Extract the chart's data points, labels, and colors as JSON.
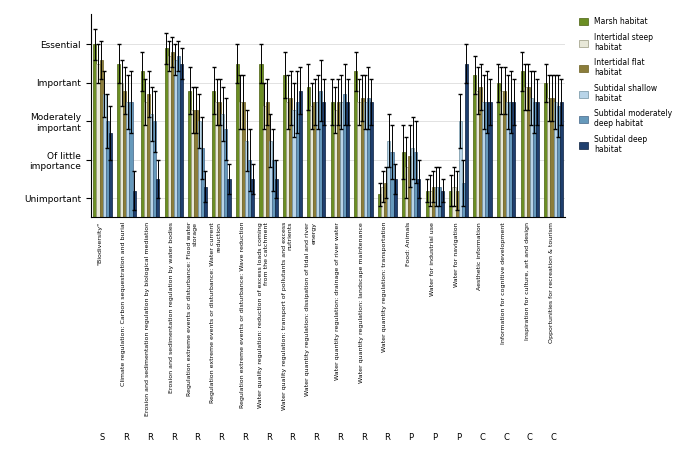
{
  "categories": [
    "\"Biodiversity\"",
    "Climate regulation: Carbon sequestration and burial",
    "Erosion and sedimentation regulation by biological mediation",
    "Erosion and sedimentation regulation by water bodies",
    "Regulation extreme events or disturbance: Flood water\nstorage",
    "Regulation extreme events or disturbance: Water current\nreduction",
    "Regulation extreme events or disturbance: Wave reduction",
    "Water quality regulation: reduction of excess loads coming\nfrom the catchment",
    "Water quality regulation: transport of pollutants and excess\nnutrients",
    "Water quantity regulation: dissipation of tidal and river\nenergy",
    "Water quantity regulation: drainage of river water",
    "Water quantity regulation: landscape maintenance",
    "Water quantity regulation: transportation",
    "Food: Animals",
    "Water for industrial use",
    "Water for navigation",
    "Aesthetic information",
    "Information for cognitive development",
    "Inspiration for culture, art and design",
    "Opportunities for recreation & tourism"
  ],
  "category_codes": [
    "S",
    "R",
    "R",
    "R",
    "R",
    "R",
    "R",
    "R",
    "R",
    "R",
    "R",
    "R",
    "R",
    "P",
    "P",
    "P",
    "C",
    "C",
    "C",
    "C"
  ],
  "habitats": [
    "Marsh habitat",
    "Intertidal steep\nhabitat",
    "Intertidal flat\nhabitat",
    "Subtidal shallow\nhabitat",
    "Subtidal moderately\ndeep habitat",
    "Subtidal deep\nhabitat"
  ],
  "colors": [
    "#6b8e23",
    "#e8e8d8",
    "#8b7d3a",
    "#b8d4e8",
    "#6699bb",
    "#1f3f6e"
  ],
  "edgecolors": [
    "#4a6010",
    "#999980",
    "#6b5f20",
    "#7090a0",
    "#446688",
    "#0a1f3e"
  ],
  "values": [
    [
      5.0,
      4.5,
      4.3,
      4.9,
      3.8,
      3.8,
      4.5,
      4.5,
      4.2,
      3.9,
      3.5,
      4.3,
      1.1,
      2.2,
      1.2,
      1.2,
      4.2,
      4.0,
      4.3,
      4.0
    ],
    [
      4.5,
      4.0,
      3.5,
      4.7,
      3.3,
      3.5,
      3.5,
      3.4,
      3.5,
      3.4,
      3.3,
      3.5,
      1.3,
      1.8,
      1.2,
      1.3,
      3.8,
      3.8,
      3.9,
      3.6
    ],
    [
      4.6,
      3.8,
      3.7,
      4.8,
      3.3,
      3.5,
      3.5,
      3.5,
      3.6,
      3.5,
      3.5,
      3.6,
      1.4,
      2.1,
      1.3,
      1.2,
      3.9,
      3.8,
      3.9,
      3.6
    ],
    [
      3.7,
      3.5,
      3.2,
      4.6,
      3.0,
      3.2,
      2.5,
      2.5,
      3.3,
      3.5,
      3.5,
      3.5,
      2.5,
      2.3,
      1.3,
      3.0,
      3.5,
      3.5,
      3.6,
      3.5
    ],
    [
      3.0,
      3.5,
      3.0,
      4.7,
      2.3,
      2.8,
      2.0,
      2.0,
      3.5,
      3.8,
      3.7,
      3.6,
      2.2,
      2.2,
      1.3,
      1.4,
      3.5,
      3.5,
      3.5,
      3.4
    ],
    [
      2.7,
      1.2,
      1.5,
      4.5,
      1.3,
      1.5,
      1.5,
      1.5,
      3.8,
      3.5,
      3.5,
      3.5,
      1.5,
      1.5,
      1.2,
      4.5,
      3.5,
      3.5,
      3.5,
      3.5
    ]
  ],
  "errors": [
    [
      0.4,
      0.5,
      0.5,
      0.4,
      0.6,
      0.6,
      0.5,
      0.5,
      0.6,
      0.6,
      0.6,
      0.5,
      0.3,
      0.7,
      0.3,
      0.4,
      0.5,
      0.5,
      0.5,
      0.5
    ],
    [
      0.5,
      0.6,
      0.6,
      0.4,
      0.6,
      0.6,
      0.7,
      0.6,
      0.7,
      0.6,
      0.6,
      0.6,
      0.4,
      0.8,
      0.4,
      0.5,
      0.6,
      0.6,
      0.6,
      0.6
    ],
    [
      0.5,
      0.6,
      0.6,
      0.4,
      0.6,
      0.6,
      0.7,
      0.6,
      0.7,
      0.6,
      0.6,
      0.6,
      0.4,
      0.8,
      0.4,
      0.5,
      0.6,
      0.6,
      0.6,
      0.6
    ],
    [
      0.6,
      0.7,
      0.7,
      0.4,
      0.7,
      0.7,
      0.8,
      0.7,
      0.7,
      0.7,
      0.7,
      0.7,
      0.7,
      0.8,
      0.5,
      0.7,
      0.7,
      0.7,
      0.7,
      0.7
    ],
    [
      0.7,
      0.8,
      0.8,
      0.4,
      0.8,
      0.8,
      0.8,
      0.8,
      0.8,
      0.8,
      0.8,
      0.8,
      0.7,
      0.8,
      0.5,
      0.6,
      0.8,
      0.8,
      0.8,
      0.8
    ],
    [
      0.7,
      0.5,
      0.5,
      0.4,
      0.4,
      0.4,
      0.4,
      0.5,
      0.6,
      0.6,
      0.6,
      0.6,
      0.4,
      0.5,
      0.3,
      0.5,
      0.6,
      0.6,
      0.6,
      0.6
    ]
  ],
  "ytick_labels": [
    "Unimportant",
    "Of little\nimportance",
    "Moderately\nimportant",
    "Important",
    "Essential"
  ],
  "ytick_values": [
    1,
    2,
    3,
    4,
    5
  ],
  "ylim": [
    0.5,
    5.8
  ],
  "bar_width": 0.13
}
